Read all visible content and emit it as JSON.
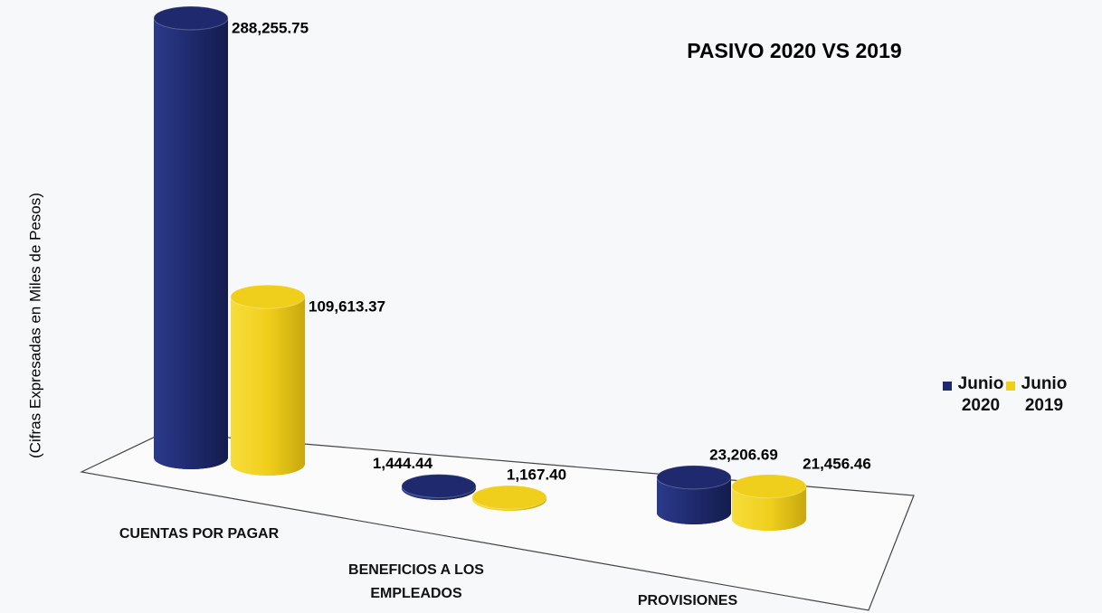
{
  "chart_data": {
    "type": "bar3d",
    "title": "PASIVO 2020 VS 2019",
    "y_label": "(Cifras Expresadas en Miles  de Pesos)",
    "categories": [
      "CUENTAS POR PAGAR",
      "BENEFICIOS A LOS EMPLEADOS",
      "PROVISIONES"
    ],
    "series": [
      {
        "name": "Junio 2020",
        "color": "#1f2a6e",
        "values": [
          288255.75,
          1444.44,
          23206.69
        ],
        "value_labels": [
          "288,255.75",
          "1,444.44",
          "23,206.69"
        ]
      },
      {
        "name": "Junio 2019",
        "color": "#f0cf1c",
        "values": [
          109613.37,
          1167.4,
          21456.46
        ],
        "value_labels": [
          "109,613.37",
          "1,167.40",
          "21,456.46"
        ]
      }
    ]
  }
}
